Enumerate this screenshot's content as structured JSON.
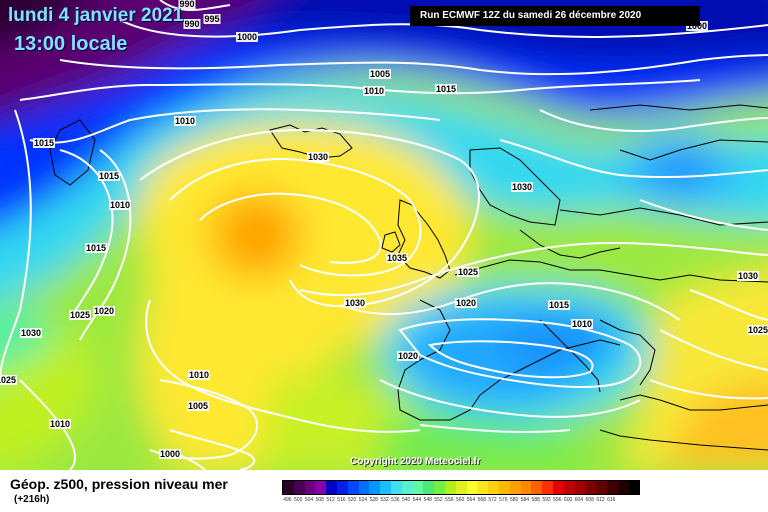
{
  "header": {
    "date": "lundi 4 janvier 2021",
    "time": "13:00 locale",
    "run": "Run ECMWF 12Z du samedi 26 décembre 2020"
  },
  "copyright": "Copyright 2020 Meteociel.fr",
  "footer": {
    "title": "Géop. z500, pression niveau mer",
    "lead": "(+216h)"
  },
  "legend": {
    "colors": [
      "#2b0028",
      "#4a0050",
      "#6a0080",
      "#8a00a8",
      "#0000c8",
      "#0020e8",
      "#0048ff",
      "#0070ff",
      "#0098ff",
      "#18c0ff",
      "#40e0f0",
      "#58f0d0",
      "#60f8a0",
      "#50e870",
      "#70f040",
      "#b0f020",
      "#e0f020",
      "#ffff30",
      "#ffe820",
      "#ffd010",
      "#ffb800",
      "#ffa000",
      "#ff8800",
      "#ff6000",
      "#ff3000",
      "#e80000",
      "#c00000",
      "#a00000",
      "#800000",
      "#600000",
      "#400000",
      "#200000",
      "#000000"
    ],
    "labels": [
      "496",
      "500",
      "504",
      "508",
      "512",
      "516",
      "520",
      "524",
      "528",
      "532",
      "536",
      "540",
      "544",
      "548",
      "552",
      "556",
      "560",
      "564",
      "568",
      "572",
      "576",
      "580",
      "584",
      "588",
      "592",
      "596",
      "600",
      "604",
      "608",
      "612",
      "616"
    ]
  },
  "isobar_labels": [
    "1000",
    "995",
    "990",
    "990",
    "1000",
    "1005",
    "1010",
    "1015",
    "1015",
    "1010",
    "1015",
    "1010",
    "1010",
    "1015",
    "1030",
    "1030",
    "1035",
    "1025",
    "1020",
    "1025",
    "1020",
    "1030",
    "1030",
    "1030",
    "1020",
    "1015",
    "1010",
    "1025",
    "1010",
    "1005",
    "1010",
    "1000",
    "1030",
    "1025",
    "1025"
  ]
}
